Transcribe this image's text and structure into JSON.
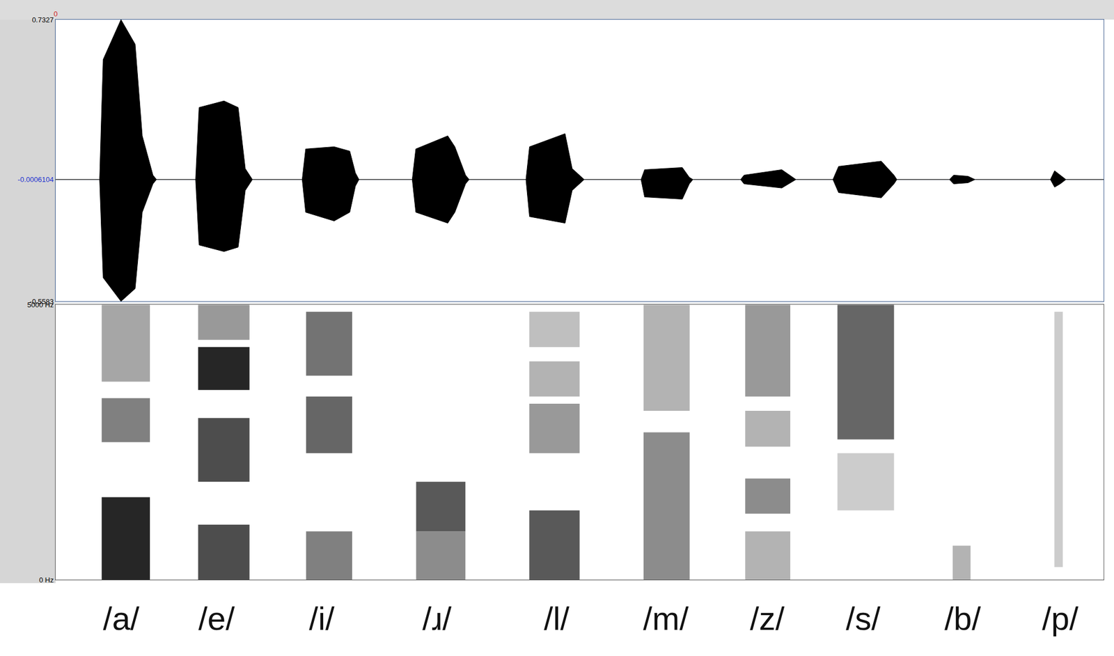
{
  "chart_data": [
    {
      "type": "waveform",
      "x": [
        0,
        0.42,
        0.454,
        0.624,
        0.759,
        0.827,
        0.929,
        0.963,
        1.336,
        1.369,
        1.607,
        1.742,
        1.81,
        1.878,
        2.353,
        2.386,
        2.658,
        2.807,
        2.861,
        2.895,
        3.403,
        3.437,
        3.742,
        3.81,
        3.912,
        3.946,
        4.488,
        4.522,
        4.861,
        4.929,
        5.044,
        5.586,
        5.62,
        5.98,
        6.047,
        6.081,
        6.536,
        6.569,
        6.929,
        7.031,
        7.064,
        7.417,
        7.471,
        7.878,
        8.0,
        8.027,
        8.529,
        8.569,
        8.705,
        8.773,
        9.492,
        9.532,
        9.586,
        9.64,
        10
      ],
      "upper": [
        0,
        0,
        0.55,
        0.7327,
        0.62,
        0.2,
        0.02,
        0,
        0,
        0.33,
        0.36,
        0.33,
        0.05,
        0,
        0,
        0.14,
        0.15,
        0.13,
        0.03,
        0,
        0,
        0.14,
        0.2,
        0.15,
        0.02,
        0,
        0,
        0.15,
        0.21,
        0.05,
        0,
        0,
        0.045,
        0.055,
        0.01,
        0,
        0,
        0.02,
        0.045,
        0.01,
        0,
        0,
        0.06,
        0.084,
        0.02,
        0,
        0,
        0.02,
        0.015,
        0,
        0,
        0.04,
        0.02,
        0,
        0
      ],
      "lower": [
        0,
        0,
        -0.45,
        -0.5583,
        -0.5,
        -0.15,
        -0.02,
        0,
        0,
        -0.3,
        -0.33,
        -0.31,
        -0.05,
        0,
        0,
        -0.15,
        -0.19,
        -0.15,
        -0.03,
        0,
        0,
        -0.15,
        -0.2,
        -0.15,
        -0.02,
        0,
        0,
        -0.17,
        -0.2,
        -0.05,
        0,
        0,
        -0.08,
        -0.09,
        -0.02,
        0,
        0,
        -0.02,
        -0.039,
        -0.01,
        0,
        0,
        -0.06,
        -0.084,
        -0.02,
        0,
        0,
        -0.02,
        -0.015,
        0,
        0,
        -0.035,
        -0.02,
        0,
        0
      ],
      "xlim": [
        0,
        10
      ],
      "xticks": [
        0
      ],
      "ylim": [
        -0.5583,
        0.7327
      ],
      "yticks": [
        -0.5583,
        -0.0006104,
        0.7327
      ],
      "color": "#000000"
    },
    {
      "type": "spectrogram",
      "xlim": [
        0,
        10
      ],
      "ylim": [
        0,
        5000
      ],
      "yticks": [
        {
          "value": 0,
          "label": "0 Hz"
        },
        {
          "value": 5000,
          "label": "5000 Hz"
        }
      ],
      "tick_labels": "y",
      "cells": [
        {
          "t": [
            0.44,
            0.9
          ],
          "f": [
            0,
            1500
          ],
          "level": 0.85
        },
        {
          "t": [
            0.44,
            0.9
          ],
          "f": [
            2500,
            3300
          ],
          "level": 0.5
        },
        {
          "t": [
            0.44,
            0.9
          ],
          "f": [
            3600,
            5000
          ],
          "level": 0.35
        },
        {
          "t": [
            1.36,
            1.85
          ],
          "f": [
            0,
            1000
          ],
          "level": 0.7
        },
        {
          "t": [
            1.36,
            1.85
          ],
          "f": [
            1780,
            2940
          ],
          "level": 0.7
        },
        {
          "t": [
            1.36,
            1.85
          ],
          "f": [
            3450,
            4230
          ],
          "level": 0.85
        },
        {
          "t": [
            1.36,
            1.85
          ],
          "f": [
            4360,
            5000
          ],
          "level": 0.4
        },
        {
          "t": [
            2.39,
            2.83
          ],
          "f": [
            0,
            880
          ],
          "level": 0.5
        },
        {
          "t": [
            2.39,
            2.83
          ],
          "f": [
            2300,
            3330
          ],
          "level": 0.6
        },
        {
          "t": [
            2.39,
            2.83
          ],
          "f": [
            3710,
            4870
          ],
          "level": 0.55
        },
        {
          "t": [
            3.44,
            3.91
          ],
          "f": [
            0,
            880
          ],
          "level": 0.45
        },
        {
          "t": [
            3.44,
            3.91
          ],
          "f": [
            880,
            1780
          ],
          "level": 0.65
        },
        {
          "t": [
            4.52,
            5.0
          ],
          "f": [
            0,
            1260
          ],
          "level": 0.65
        },
        {
          "t": [
            4.52,
            5.0
          ],
          "f": [
            2300,
            3200
          ],
          "level": 0.4
        },
        {
          "t": [
            4.52,
            5.0
          ],
          "f": [
            3330,
            3970
          ],
          "level": 0.3
        },
        {
          "t": [
            4.52,
            5.0
          ],
          "f": [
            4230,
            4870
          ],
          "level": 0.25
        },
        {
          "t": [
            5.61,
            6.05
          ],
          "f": [
            0,
            2680
          ],
          "level": 0.45
        },
        {
          "t": [
            5.61,
            6.05
          ],
          "f": [
            3070,
            5000
          ],
          "level": 0.3
        },
        {
          "t": [
            6.58,
            7.01
          ],
          "f": [
            0,
            880
          ],
          "level": 0.3
        },
        {
          "t": [
            6.58,
            7.01
          ],
          "f": [
            1200,
            1840
          ],
          "level": 0.45
        },
        {
          "t": [
            6.58,
            7.01
          ],
          "f": [
            2420,
            3070
          ],
          "level": 0.3
        },
        {
          "t": [
            6.58,
            7.01
          ],
          "f": [
            3330,
            5000
          ],
          "level": 0.4
        },
        {
          "t": [
            7.46,
            8.0
          ],
          "f": [
            1260,
            2300
          ],
          "level": 0.2
        },
        {
          "t": [
            7.46,
            8.0
          ],
          "f": [
            2550,
            5000
          ],
          "level": 0.6
        },
        {
          "t": [
            8.56,
            8.73
          ],
          "f": [
            0,
            620
          ],
          "level": 0.3
        },
        {
          "t": [
            9.53,
            9.61
          ],
          "f": [
            230,
            4870
          ],
          "level": 0.2
        }
      ],
      "segments": [
        {
          "label": "/a/",
          "x": 0.624
        },
        {
          "label": "/e/",
          "x": 1.539
        },
        {
          "label": "/i/",
          "x": 2.542
        },
        {
          "label": "/ɹ/",
          "x": 3.641
        },
        {
          "label": "/l/",
          "x": 4.78
        },
        {
          "label": "/m/",
          "x": 5.824
        },
        {
          "label": "/z/",
          "x": 6.793
        },
        {
          "label": "/s/",
          "x": 7.708
        },
        {
          "label": "/b/",
          "x": 8.658
        },
        {
          "label": "/p/",
          "x": 9.586
        }
      ]
    }
  ]
}
